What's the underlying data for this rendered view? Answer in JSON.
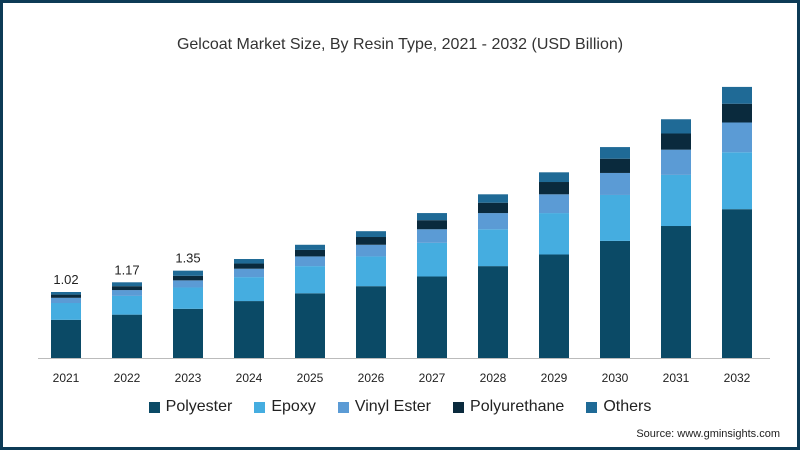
{
  "chart_data": {
    "type": "bar",
    "stacked": true,
    "title": "Gelcoat Market Size, By Resin Type, 2021 - 2032 (USD Billion)",
    "xlabel": "",
    "ylabel": "",
    "categories": [
      "2021",
      "2022",
      "2023",
      "2024",
      "2025",
      "2026",
      "2027",
      "2028",
      "2029",
      "2030",
      "2031",
      "2032"
    ],
    "series": [
      {
        "name": "Polyester",
        "color": "#0b4a66",
        "values": [
          0.59,
          0.67,
          0.76,
          0.88,
          1.0,
          1.11,
          1.26,
          1.42,
          1.6,
          1.81,
          2.04,
          2.3
        ]
      },
      {
        "name": "Epoxy",
        "color": "#45ade0",
        "values": [
          0.26,
          0.29,
          0.33,
          0.37,
          0.42,
          0.46,
          0.52,
          0.57,
          0.64,
          0.71,
          0.79,
          0.88
        ]
      },
      {
        "name": "Vinyl Ester",
        "color": "#5b9bd5",
        "values": [
          0.08,
          0.09,
          0.11,
          0.13,
          0.15,
          0.18,
          0.21,
          0.25,
          0.29,
          0.34,
          0.39,
          0.46
        ]
      },
      {
        "name": "Polyurethane",
        "color": "#0a2a3d",
        "values": [
          0.05,
          0.06,
          0.07,
          0.08,
          0.1,
          0.12,
          0.14,
          0.16,
          0.19,
          0.22,
          0.25,
          0.29
        ]
      },
      {
        "name": "Others",
        "color": "#1f6a96",
        "values": [
          0.04,
          0.06,
          0.08,
          0.07,
          0.08,
          0.09,
          0.11,
          0.13,
          0.15,
          0.18,
          0.22,
          0.26
        ]
      }
    ],
    "data_labels": [
      {
        "category": "2021",
        "text": "1.02"
      },
      {
        "category": "2022",
        "text": "1.17"
      },
      {
        "category": "2023",
        "text": "1.35"
      }
    ],
    "ylim": [
      0,
      4.4
    ],
    "grid": false,
    "legend": "bottom"
  },
  "source": "Source: www.gminsights.com"
}
